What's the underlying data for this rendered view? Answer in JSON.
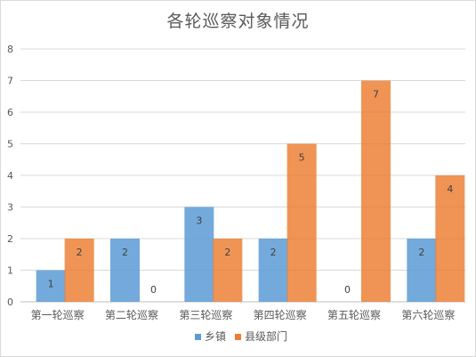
{
  "chart_data": {
    "type": "bar",
    "title": "各轮巡察对象情况",
    "categories": [
      "第一轮巡察",
      "第二轮巡察",
      "第三轮巡察",
      "第四轮巡察",
      "第五轮巡察",
      "第六轮巡察"
    ],
    "series": [
      {
        "name": "乡镇",
        "color": "#5b9bd5",
        "values": [
          1,
          2,
          3,
          2,
          0,
          2
        ]
      },
      {
        "name": "县级部门",
        "color": "#ed7d31",
        "values": [
          2,
          0,
          2,
          5,
          7,
          4
        ]
      }
    ],
    "ylim": [
      0,
      8
    ],
    "yticks": [
      "0",
      "1",
      "2",
      "3",
      "4",
      "5",
      "6",
      "7",
      "8"
    ],
    "grid": true,
    "legend": "bottom"
  }
}
